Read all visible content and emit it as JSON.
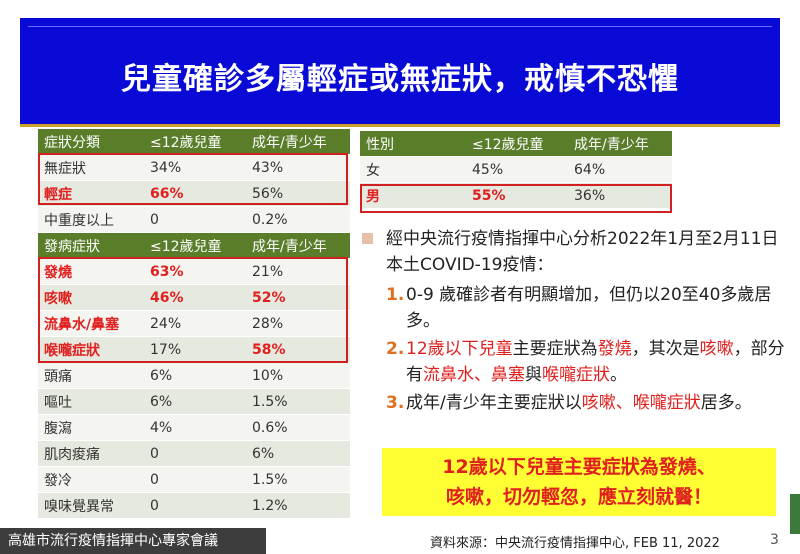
{
  "title": "兒童確診多屬輕症或無症狀，戒慎不恐懼",
  "symptom_table": {
    "headers": [
      "症狀分類",
      "≤12歲兒童",
      "成年/青少年"
    ],
    "rows": [
      [
        "無症狀",
        "34%",
        "43%"
      ],
      [
        "輕症",
        "66%",
        "56%"
      ],
      [
        "中重度以上",
        "0",
        "0.2%"
      ]
    ],
    "subheaders": [
      "發病症狀",
      "≤12歲兒童",
      "成年/青少年"
    ],
    "symptom_rows": [
      [
        "發燒",
        "63%",
        "21%"
      ],
      [
        "咳嗽",
        "46%",
        "52%"
      ],
      [
        "流鼻水/鼻塞",
        "24%",
        "28%"
      ],
      [
        "喉嚨症狀",
        "17%",
        "58%"
      ],
      [
        "頭痛",
        "6%",
        "10%"
      ],
      [
        "嘔吐",
        "6%",
        "1.5%"
      ],
      [
        "腹瀉",
        "4%",
        "0.6%"
      ],
      [
        "肌肉痠痛",
        "0",
        "6%"
      ],
      [
        "發冷",
        "0",
        "1.5%"
      ],
      [
        "嗅味覺異常",
        "0",
        "1.2%"
      ]
    ]
  },
  "gender_table": {
    "headers": [
      "性別",
      "≤12歲兒童",
      "成年/青少年"
    ],
    "rows": [
      [
        "女",
        "45%",
        "64%"
      ],
      [
        "男",
        "55%",
        "36%"
      ]
    ]
  },
  "analysis": {
    "intro": "經中央流行疫情指揮中心分析2022年1月至2月11日本土COVID-19疫情：",
    "p1": "0-9 歲確診者有明顯增加，但仍以20至40多歲居多。",
    "p2_a": "12歲以下兒童",
    "p2_b": "主要症狀為",
    "p2_c": "發燒",
    "p2_d": "，其次是",
    "p2_e": "咳嗽",
    "p2_f": "，部分有",
    "p2_g": "流鼻水、鼻塞",
    "p2_h": "與",
    "p2_i": "喉嚨症狀",
    "p2_j": "。",
    "p3_a": "成年/青少年主要症狀以",
    "p3_b": "咳嗽、喉嚨症狀",
    "p3_c": "居多。",
    "n1": "1.",
    "n2": "2.",
    "n3": "3."
  },
  "callout": {
    "line1": "12歲以下兒童主要症狀為發燒、",
    "line2": "咳嗽，切勿輕忽，應立刻就醫！"
  },
  "footer": {
    "org": "高雄市流行疫情指揮中心專家會議",
    "source": "資料來源：中央流行疫情指揮中心, FEB 11, 2022",
    "page": "3"
  },
  "colors": {
    "title_bg": "#0a0ad6",
    "table_header": "#5a7d2a",
    "highlight_red": "#e0201f",
    "callout_bg": "#ffff33"
  }
}
